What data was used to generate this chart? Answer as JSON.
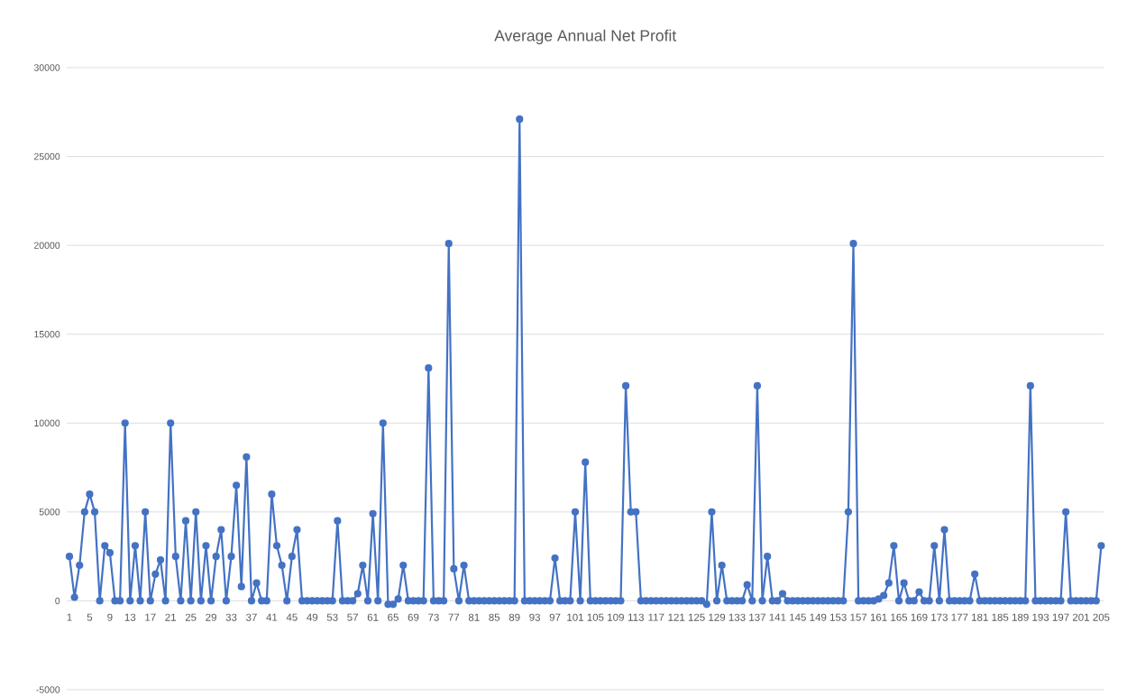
{
  "chart_data": {
    "type": "line",
    "title": "Average Annual Net Profit",
    "categories": [
      "1",
      null,
      null,
      null,
      "5",
      null,
      null,
      null,
      "9",
      null,
      null,
      null,
      "13",
      null,
      null,
      null,
      "17",
      null,
      null,
      null,
      "21",
      null,
      null,
      null,
      "25",
      null,
      null,
      null,
      "29",
      null,
      null,
      null,
      "33",
      null,
      null,
      null,
      "37",
      null,
      null,
      null,
      "41",
      null,
      null,
      null,
      "45",
      null,
      null,
      null,
      "49",
      null,
      null,
      null,
      "53",
      null,
      null,
      null,
      "57",
      null,
      null,
      null,
      "61",
      null,
      null,
      null,
      "65",
      null,
      null,
      null,
      "69",
      null,
      null,
      null,
      "73",
      null,
      null,
      null,
      "77",
      null,
      null,
      null,
      "81",
      null,
      null,
      null,
      "85",
      null,
      null,
      null,
      "89",
      null,
      null,
      null,
      "93",
      null,
      null,
      null,
      "97",
      null,
      null,
      null,
      "101",
      null,
      null,
      null,
      "105",
      null,
      null,
      null,
      "109",
      null,
      null,
      null,
      "113",
      null,
      null,
      null,
      "117",
      null,
      null,
      null,
      "121",
      null,
      null,
      null,
      "125",
      null,
      null,
      null,
      "129",
      null,
      null,
      null,
      "133",
      null,
      null,
      null,
      "137",
      null,
      null,
      null,
      "141",
      null,
      null,
      null,
      "145",
      null,
      null,
      null,
      "149",
      null,
      null,
      null,
      "153",
      null,
      null,
      null,
      "157",
      null,
      null,
      null,
      "161",
      null,
      null,
      null,
      "165",
      null,
      null,
      null,
      "169",
      null,
      null,
      null,
      "173",
      null,
      null,
      null,
      "177",
      null,
      null,
      null,
      "181",
      null,
      null,
      null,
      "185",
      null,
      null,
      null,
      "189",
      null,
      null,
      null,
      "193",
      null,
      null,
      null,
      "197",
      null,
      null,
      null,
      "201",
      null,
      null,
      null,
      "205"
    ],
    "values": [
      2500,
      200,
      2000,
      5000,
      6000,
      5000,
      0,
      3100,
      2700,
      0,
      0,
      10000,
      0,
      3100,
      0,
      5000,
      0,
      1500,
      2300,
      0,
      10000,
      2500,
      0,
      4500,
      0,
      5000,
      0,
      3100,
      0,
      2500,
      4000,
      0,
      2500,
      6500,
      800,
      8100,
      0,
      1000,
      0,
      0,
      6000,
      3100,
      2000,
      0,
      2500,
      4000,
      0,
      0,
      0,
      0,
      0,
      0,
      0,
      4500,
      0,
      0,
      0,
      400,
      2000,
      0,
      4900,
      0,
      10000,
      -200,
      -200,
      100,
      2000,
      0,
      0,
      0,
      0,
      13100,
      0,
      0,
      0,
      20100,
      1800,
      0,
      2000,
      0,
      0,
      0,
      0,
      0,
      0,
      0,
      0,
      0,
      0,
      27100,
      0,
      0,
      0,
      0,
      0,
      0,
      2400,
      0,
      0,
      0,
      5000,
      0,
      7800,
      0,
      0,
      0,
      0,
      0,
      0,
      0,
      12100,
      5000,
      5000,
      0,
      0,
      0,
      0,
      0,
      0,
      0,
      0,
      0,
      0,
      0,
      0,
      0,
      -200,
      5000,
      0,
      2000,
      0,
      0,
      0,
      0,
      900,
      0,
      12100,
      0,
      2500,
      0,
      0,
      400,
      0,
      0,
      0,
      0,
      0,
      0,
      0,
      0,
      0,
      0,
      0,
      0,
      5000,
      20100,
      0,
      0,
      0,
      0,
      100,
      300,
      1000,
      3100,
      0,
      1000,
      0,
      0,
      500,
      0,
      0,
      3100,
      0,
      4000,
      0,
      0,
      0,
      0,
      0,
      1500,
      0,
      0,
      0,
      0,
      0,
      0,
      0,
      0,
      0,
      0,
      12100,
      0,
      0,
      0,
      0,
      0,
      0,
      5000,
      0,
      0,
      0,
      0,
      0,
      0,
      3100
    ],
    "color": "#4472c4",
    "ylim": [
      -5000,
      30000
    ],
    "yticks": [
      -5000,
      0,
      5000,
      10000,
      15000,
      20000,
      25000,
      30000
    ],
    "grid": "y",
    "marker": "circle",
    "line_style": "solid"
  }
}
